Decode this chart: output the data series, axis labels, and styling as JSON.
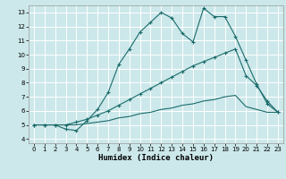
{
  "xlabel": "Humidex (Indice chaleur)",
  "bg_color": "#cce8ea",
  "grid_color": "#ffffff",
  "line_color": "#1a6b6b",
  "xlim": [
    -0.5,
    23.5
  ],
  "ylim": [
    3.7,
    13.5
  ],
  "xticks": [
    0,
    1,
    2,
    3,
    4,
    5,
    6,
    7,
    8,
    9,
    10,
    11,
    12,
    13,
    14,
    15,
    16,
    17,
    18,
    19,
    20,
    21,
    22,
    23
  ],
  "yticks": [
    4,
    5,
    6,
    7,
    8,
    9,
    10,
    11,
    12,
    13
  ],
  "line1_x": [
    0,
    1,
    2,
    3,
    4,
    5,
    6,
    7,
    8,
    9,
    10,
    11,
    12,
    13,
    14,
    15,
    16,
    17,
    18,
    19,
    20,
    21,
    22,
    23
  ],
  "line1_y": [
    5.0,
    5.0,
    5.0,
    4.7,
    4.6,
    5.3,
    6.1,
    7.3,
    9.3,
    10.4,
    11.6,
    12.3,
    13.0,
    12.6,
    11.5,
    10.9,
    13.3,
    12.7,
    12.7,
    11.3,
    9.6,
    7.9,
    6.5,
    5.9
  ],
  "line2_x": [
    0,
    1,
    2,
    3,
    4,
    5,
    6,
    7,
    8,
    9,
    10,
    11,
    12,
    13,
    14,
    15,
    16,
    17,
    18,
    19,
    20,
    21,
    22,
    23
  ],
  "line2_y": [
    5.0,
    5.0,
    5.0,
    5.0,
    5.2,
    5.4,
    5.7,
    6.0,
    6.4,
    6.8,
    7.2,
    7.6,
    8.0,
    8.4,
    8.8,
    9.2,
    9.5,
    9.8,
    10.1,
    10.4,
    8.5,
    7.8,
    6.7,
    5.9
  ],
  "line3_x": [
    0,
    1,
    2,
    3,
    4,
    5,
    6,
    7,
    8,
    9,
    10,
    11,
    12,
    13,
    14,
    15,
    16,
    17,
    18,
    19,
    20,
    21,
    22,
    23
  ],
  "line3_y": [
    5.0,
    5.0,
    5.0,
    5.0,
    5.0,
    5.1,
    5.2,
    5.3,
    5.5,
    5.6,
    5.8,
    5.9,
    6.1,
    6.2,
    6.4,
    6.5,
    6.7,
    6.8,
    7.0,
    7.1,
    6.3,
    6.1,
    5.9,
    5.9
  ],
  "xlabel_fontsize": 6.5,
  "tick_fontsize": 5.0
}
